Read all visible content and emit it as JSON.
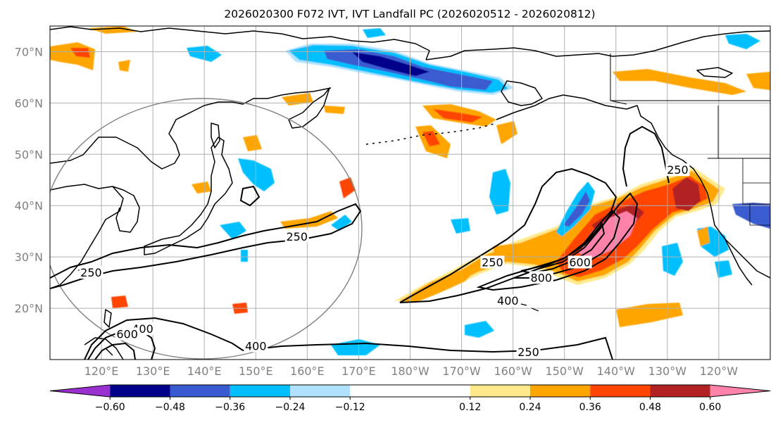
{
  "chart_data": {
    "type": "heatmap",
    "title": "2026020300 F072 IVT, IVT Landfall PC (2026020512 - 2026020812)",
    "projection": "PlateCarree, central longitude 180",
    "lon_range": [
      110,
      250
    ],
    "lat_range": [
      10,
      75
    ],
    "lat_ticks": [
      {
        "value": 70,
        "label": "70°N"
      },
      {
        "value": 60,
        "label": "60°N"
      },
      {
        "value": 50,
        "label": "50°N"
      },
      {
        "value": 40,
        "label": "40°N"
      },
      {
        "value": 30,
        "label": "30°N"
      },
      {
        "value": 20,
        "label": "20°N"
      }
    ],
    "lon_ticks": [
      {
        "value": 120,
        "label": "120°E"
      },
      {
        "value": 130,
        "label": "130°E"
      },
      {
        "value": 140,
        "label": "140°E"
      },
      {
        "value": 150,
        "label": "150°E"
      },
      {
        "value": 160,
        "label": "160°E"
      },
      {
        "value": 170,
        "label": "170°E"
      },
      {
        "value": 180,
        "label": "180°W"
      },
      {
        "value": 190,
        "label": "170°W"
      },
      {
        "value": 200,
        "label": "160°W"
      },
      {
        "value": 210,
        "label": "150°W"
      },
      {
        "value": 220,
        "label": "140°W"
      },
      {
        "value": 230,
        "label": "130°W"
      },
      {
        "value": 240,
        "label": "120°W"
      }
    ],
    "colorbar": {
      "boundaries": [
        -0.72,
        -0.6,
        -0.48,
        -0.36,
        -0.24,
        -0.12,
        0.12,
        0.24,
        0.36,
        0.48,
        0.6,
        0.72
      ],
      "tick_labels": [
        "−0.60",
        "−0.48",
        "−0.36",
        "−0.24",
        "−0.12",
        "0.12",
        "0.24",
        "0.36",
        "0.48",
        "0.60"
      ],
      "colors": [
        "#9b30d0",
        "#00008b",
        "#3a5bd0",
        "#00bfff",
        "#b0e2ff",
        "#ffffff",
        "#ffe98a",
        "#ffa500",
        "#ff4500",
        "#b22222",
        "#ff82ab"
      ],
      "extend": "both"
    },
    "ivt_contour_labels": [
      {
        "text": "250",
        "lon": 158,
        "lat": 34
      },
      {
        "text": "250",
        "lon": 118,
        "lat": 27
      },
      {
        "text": "250",
        "lon": 196,
        "lat": 29
      },
      {
        "text": "250",
        "lon": 203,
        "lat": 11.5
      },
      {
        "text": "250",
        "lon": 232,
        "lat": 47
      },
      {
        "text": "400",
        "lon": 128,
        "lat": 16
      },
      {
        "text": "400",
        "lon": 150,
        "lat": 12.7
      },
      {
        "text": "400",
        "lon": 199,
        "lat": 21.5
      },
      {
        "text": "600",
        "lon": 125,
        "lat": 15
      },
      {
        "text": "600",
        "lon": 213,
        "lat": 29
      },
      {
        "text": "800",
        "lon": 205.5,
        "lat": 26
      }
    ]
  }
}
